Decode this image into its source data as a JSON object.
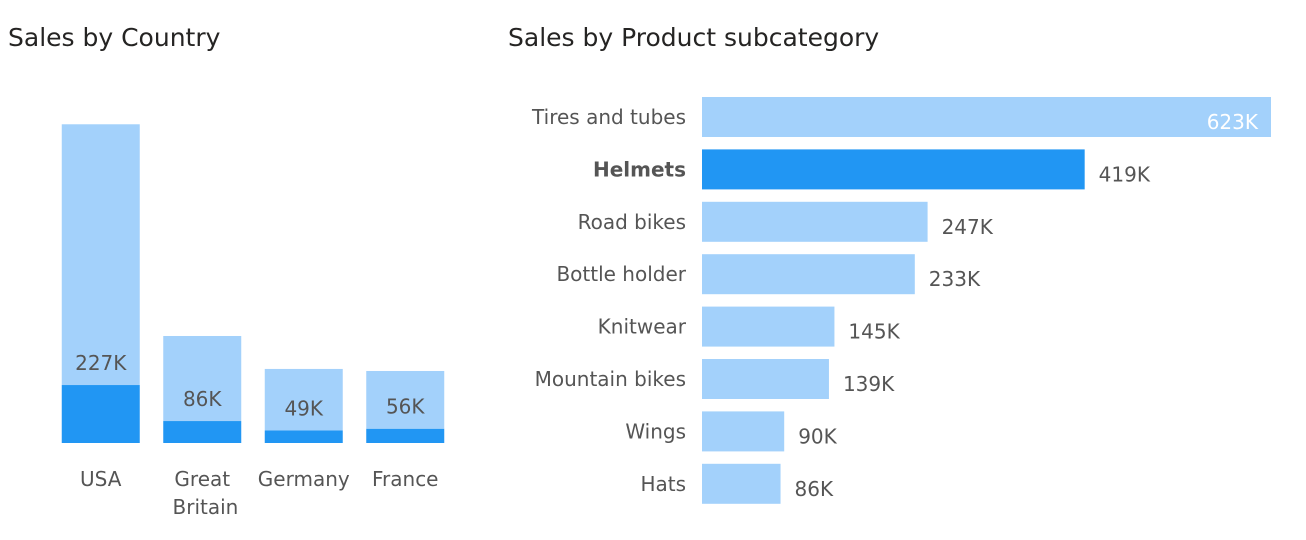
{
  "chart_data": [
    {
      "type": "column",
      "title": "Sales by Country",
      "stacked": true,
      "categories": [
        "USA",
        "Great Britain",
        "Germany",
        "France"
      ],
      "ylim": [
        0,
        1300
      ],
      "series": [
        {
          "name": "Helmets",
          "color": "#2196f3",
          "values": [
            227,
            86,
            49,
            56
          ],
          "value_labels": [
            "227K",
            "86K",
            "49K",
            "56K"
          ]
        },
        {
          "color": "#a3d1fb",
          "values": [
            1021,
            333,
            241,
            226
          ]
        }
      ]
    },
    {
      "type": "hbar",
      "title": "Sales by Product subcategory",
      "categories": [
        "Tires and tubes",
        "Helmets",
        "Road bikes",
        "Bottle holder",
        "Knitwear",
        "Mountain bikes",
        "Wings",
        "Hats"
      ],
      "values": [
        623,
        419,
        247,
        233,
        145,
        139,
        90,
        86
      ],
      "value_labels": [
        "623K",
        "419K",
        "247K",
        "233K",
        "145K",
        "139K",
        "90K",
        "86K"
      ],
      "highlighted": [
        false,
        true,
        false,
        false,
        false,
        false,
        false,
        false
      ],
      "color": "#a3d1fb",
      "highlight_color": "#2196f3",
      "xlim": [
        0,
        623
      ]
    }
  ]
}
